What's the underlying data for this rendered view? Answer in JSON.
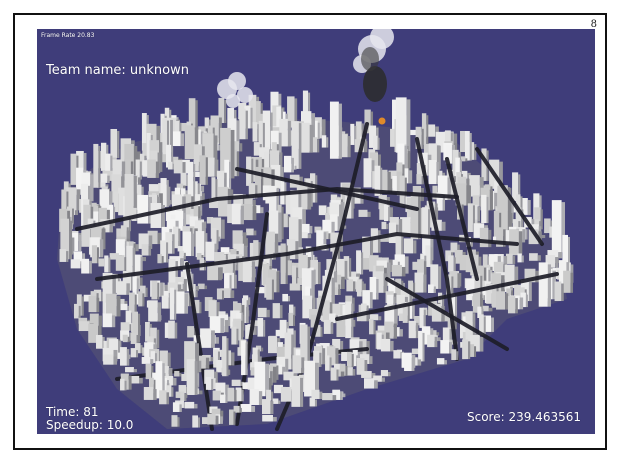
{
  "page": {
    "number": "8"
  },
  "hud": {
    "frame_rate_label": "Frame Rate 20.83",
    "team_label": "Team name: unknown",
    "time_label": "Time: 81",
    "speedup_label": "Speedup: 10.0",
    "score_label": "Score: 239.463561"
  },
  "colors": {
    "sky": "#3f3d7a",
    "building": "#c9c9c9",
    "road": "#1d1d28",
    "smoke": "#e6e6ee",
    "fire": "#e08a2a"
  }
}
